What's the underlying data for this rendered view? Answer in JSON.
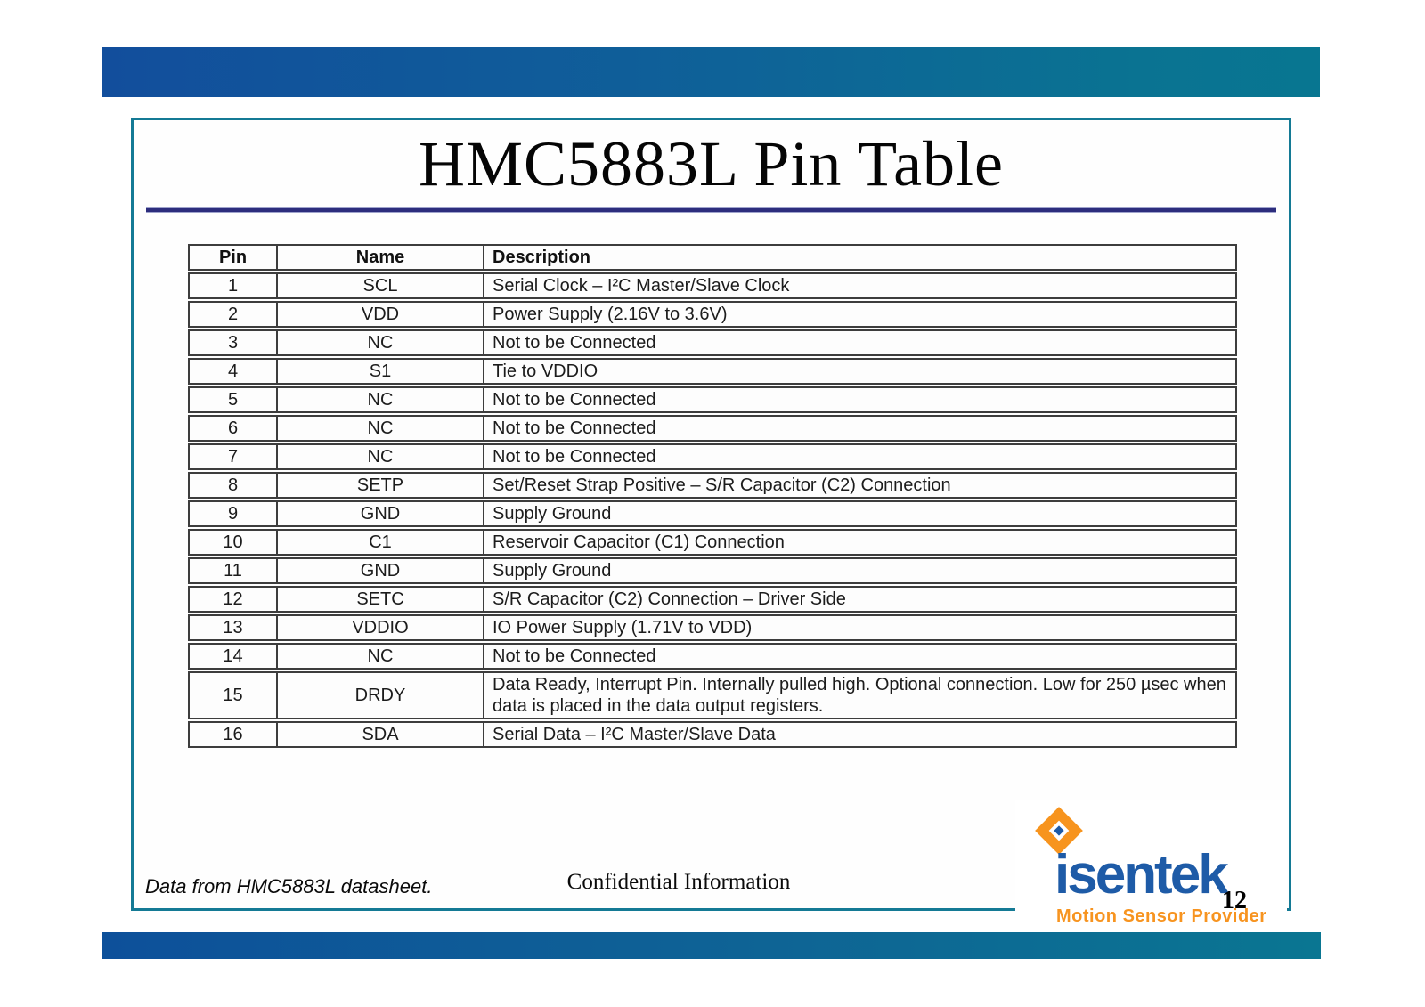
{
  "slide": {
    "title": "HMC5883L Pin Table",
    "footer_left": "Data from HMC5883L datasheet.",
    "footer_center": "Confidential Information",
    "page_number": "12"
  },
  "logo": {
    "icon": "diamond-icon",
    "wordmark": "isentek",
    "tagline": "Motion Sensor Provider",
    "colors": {
      "blue": "#1e5ba7",
      "orange": "#f7941e"
    }
  },
  "colors": {
    "bar_gradient_left": "#124e9c",
    "bar_gradient_right": "#087691",
    "slide_border_teal": "#147a95",
    "title_rule_navy": "#2d2d7d",
    "table_border": "#3d3d3d"
  },
  "table": {
    "headers": [
      "Pin",
      "Name",
      "Description"
    ],
    "rows": [
      [
        "1",
        "SCL",
        "Serial Clock – I²C Master/Slave Clock"
      ],
      [
        "2",
        "VDD",
        "Power Supply (2.16V to 3.6V)"
      ],
      [
        "3",
        "NC",
        "Not to be Connected"
      ],
      [
        "4",
        "S1",
        "Tie to VDDIO"
      ],
      [
        "5",
        "NC",
        "Not to be Connected"
      ],
      [
        "6",
        "NC",
        "Not to be Connected"
      ],
      [
        "7",
        "NC",
        "Not to be Connected"
      ],
      [
        "8",
        "SETP",
        "Set/Reset Strap Positive – S/R Capacitor (C2) Connection"
      ],
      [
        "9",
        "GND",
        "Supply Ground"
      ],
      [
        "10",
        "C1",
        "Reservoir Capacitor (C1) Connection"
      ],
      [
        "11",
        "GND",
        "Supply Ground"
      ],
      [
        "12",
        "SETC",
        "S/R Capacitor (C2) Connection – Driver Side"
      ],
      [
        "13",
        "VDDIO",
        "IO Power Supply (1.71V to VDD)"
      ],
      [
        "14",
        "NC",
        "Not to be Connected"
      ],
      [
        "15",
        "DRDY",
        "Data Ready, Interrupt Pin.  Internally pulled high.  Optional connection.  Low for 250 µsec when data is placed in the data output registers."
      ],
      [
        "16",
        "SDA",
        "Serial Data – I²C Master/Slave Data"
      ]
    ]
  }
}
